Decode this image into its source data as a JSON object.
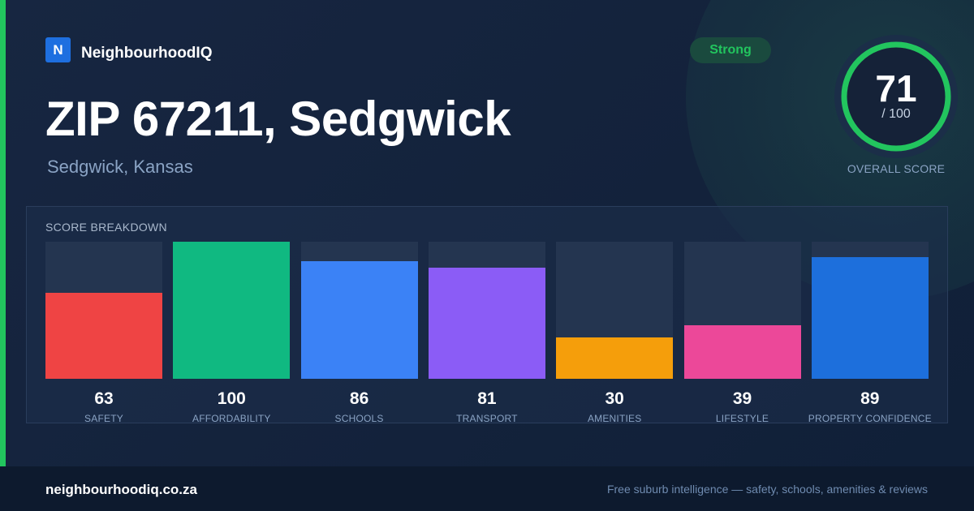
{
  "brand": {
    "logo_letter": "N",
    "name": "NeighbourhoodIQ"
  },
  "header": {
    "title": "ZIP 67211, Sedgwick",
    "subtitle": "Sedgwick, Kansas"
  },
  "badge": {
    "label": "Strong",
    "color": "#22c55e"
  },
  "overall_score": {
    "value": "71",
    "max_label": "/ 100",
    "label": "OVERALL SCORE",
    "fraction": 0.71,
    "color": "#22c55e"
  },
  "breakdown": {
    "title": "SCORE BREAKDOWN",
    "items": [
      {
        "label": "SAFETY",
        "value": 63,
        "color": "#ef4444"
      },
      {
        "label": "AFFORDABILITY",
        "value": 100,
        "color": "#10b981"
      },
      {
        "label": "SCHOOLS",
        "value": 86,
        "color": "#3b82f6"
      },
      {
        "label": "TRANSPORT",
        "value": 81,
        "color": "#8b5cf6"
      },
      {
        "label": "AMENITIES",
        "value": 30,
        "color": "#f59e0b"
      },
      {
        "label": "LIFESTYLE",
        "value": 39,
        "color": "#ec4899"
      },
      {
        "label": "PROPERTY CONFIDENCE",
        "value": 89,
        "color": "#1d6fdc"
      }
    ]
  },
  "footer": {
    "site": "neighbourhoodiq.co.za",
    "tagline": "Free suburb intelligence — safety, schools, amenities & reviews"
  }
}
